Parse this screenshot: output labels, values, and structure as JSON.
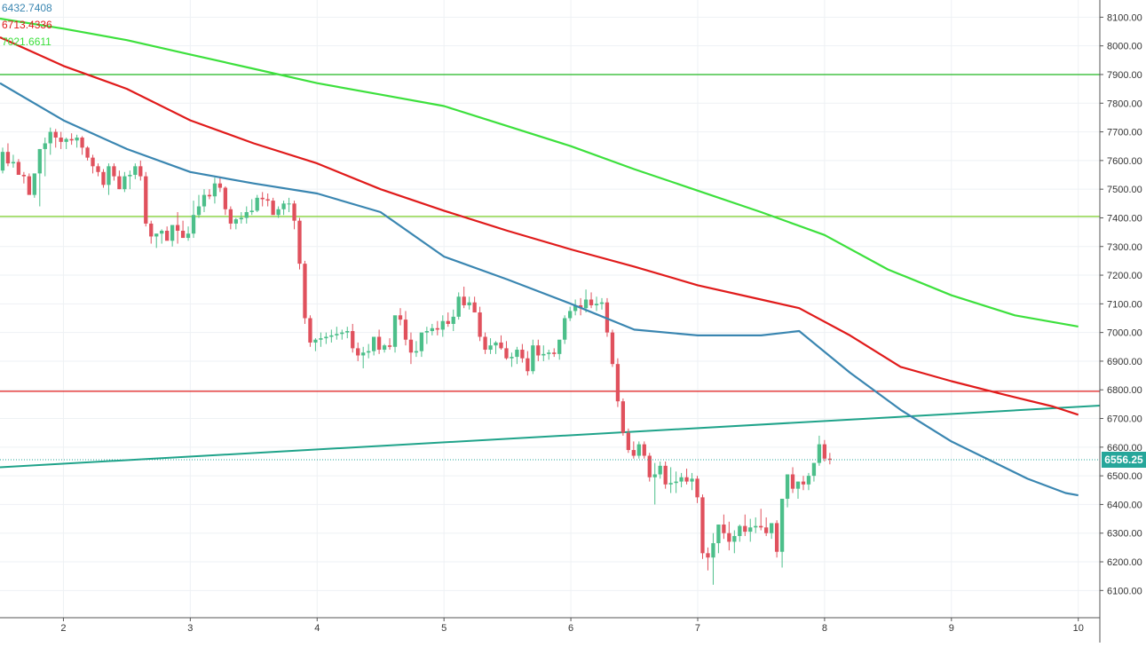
{
  "chart_data": {
    "type": "candlestick",
    "y_axis": {
      "ticks": [
        "8100.00",
        "8000.00",
        "7900.00",
        "7800.00",
        "7700.00",
        "7600.00",
        "7500.00",
        "7400.00",
        "7300.00",
        "7200.00",
        "7100.00",
        "7000.00",
        "6900.00",
        "6800.00",
        "6700.00",
        "6600.00",
        "6500.00",
        "6400.00",
        "6300.00",
        "6200.00",
        "6100.00"
      ],
      "range": [
        6005,
        8160
      ]
    },
    "x_axis": {
      "ticks": [
        "2",
        "3",
        "4",
        "5",
        "6",
        "7",
        "8",
        "9",
        "10"
      ],
      "range_days": [
        1.5,
        10.17
      ]
    },
    "legend_values": [
      {
        "text": "6432.7408",
        "color": "#3a86b1"
      },
      {
        "text": "6713.4336",
        "color": "#e01b1b"
      },
      {
        "text": "7021.6611",
        "color": "#3de03d"
      }
    ],
    "last_price": {
      "text": "6556.25",
      "value": 6556.25,
      "color": "#26a69a"
    },
    "colors": {
      "up": "#4cbf8a",
      "down": "#e0515d",
      "sma_fast": "#3a86b1",
      "sma_mid": "#e01b1b",
      "sma_slow": "#3de03d",
      "trendline": "#1fa38a",
      "grid": "#eef1f4"
    },
    "horizontal_levels": [
      {
        "value": 7900,
        "color": "#22b722"
      },
      {
        "value": 7405,
        "color": "#7ccf2a"
      },
      {
        "value": 6795,
        "color": "#e01b1b"
      }
    ],
    "trendline": {
      "points": [
        [
          1.5,
          6530
        ],
        [
          10.17,
          6745
        ]
      ]
    },
    "candles": {
      "start_day": 1.5,
      "step_days": 0.0418,
      "open": [
        7565,
        7630,
        7590,
        7595,
        7550,
        7545,
        7480,
        7555,
        7640,
        7660,
        7700,
        7680,
        7665,
        7675,
        7670,
        7680,
        7645,
        7610,
        7580,
        7560,
        7515,
        7580,
        7545,
        7500,
        7545,
        7550,
        7580,
        7545,
        7380,
        7335,
        7345,
        7355,
        7320,
        7375,
        7355,
        7330,
        7345,
        7410,
        7440,
        7480,
        7475,
        7520,
        7505,
        7430,
        7380,
        7395,
        7400,
        7420,
        7425,
        7470,
        7465,
        7460,
        7410,
        7430,
        7450,
        7450,
        7390,
        7240,
        7050,
        6965,
        6975,
        6980,
        6985,
        6990,
        6995,
        7000,
        7005,
        6945,
        6920,
        6930,
        6935,
        6985,
        6940,
        6955,
        6950,
        7060,
        7045,
        6975,
        6930,
        6935,
        7000,
        7005,
        7015,
        7010,
        7040,
        7030,
        7055,
        7125,
        7095,
        7105,
        7070,
        6985,
        6940,
        6955,
        6965,
        6945,
        6910,
        6915,
        6940,
        6910,
        6865,
        6955,
        6920,
        6925,
        6930,
        6925,
        6975,
        7050,
        7075,
        7095,
        7085,
        7115,
        7095,
        7100,
        7105,
        7000,
        6890,
        6760,
        6650,
        6590,
        6570,
        6610,
        6570,
        6495,
        6505,
        6535,
        6470,
        6475,
        6480,
        6495,
        6480,
        6490,
        6425,
        6230,
        6215,
        6265,
        6330,
        6300,
        6270,
        6290,
        6325,
        6305,
        6320,
        6325,
        6320,
        6300,
        6335,
        6235,
        6420,
        6505,
        6455,
        6480,
        6470,
        6500,
        6545,
        6610,
        6560
      ],
      "high": [
        7645,
        7660,
        7620,
        7605,
        7560,
        7555,
        7490,
        7640,
        7680,
        7715,
        7710,
        7700,
        7680,
        7695,
        7690,
        7685,
        7650,
        7620,
        7590,
        7570,
        7590,
        7590,
        7565,
        7560,
        7565,
        7590,
        7600,
        7560,
        7390,
        7345,
        7360,
        7370,
        7340,
        7420,
        7390,
        7370,
        7460,
        7480,
        7500,
        7500,
        7540,
        7540,
        7510,
        7440,
        7400,
        7420,
        7440,
        7465,
        7480,
        7490,
        7485,
        7470,
        7440,
        7460,
        7470,
        7460,
        7400,
        7250,
        7060,
        6980,
        7000,
        7000,
        7010,
        7020,
        7010,
        7020,
        7030,
        6965,
        6950,
        6960,
        6950,
        7010,
        6960,
        6980,
        6990,
        7085,
        7075,
        7000,
        6970,
        6950,
        7020,
        7030,
        7040,
        7060,
        7070,
        7080,
        7140,
        7160,
        7125,
        7125,
        7090,
        7000,
        6980,
        6970,
        6990,
        6970,
        6930,
        6950,
        6960,
        6935,
        6975,
        6975,
        6955,
        6940,
        6945,
        6940,
        7060,
        7090,
        7115,
        7120,
        7150,
        7140,
        7125,
        7120,
        7120,
        7010,
        6910,
        6770,
        6665,
        6620,
        6620,
        6620,
        6580,
        6545,
        6550,
        6550,
        6530,
        6515,
        6510,
        6525,
        6510,
        6500,
        6435,
        6250,
        6300,
        6330,
        6365,
        6340,
        6310,
        6330,
        6365,
        6350,
        6355,
        6385,
        6355,
        6330,
        6345,
        6400,
        6505,
        6530,
        6480,
        6500,
        6510,
        6545,
        6640,
        6625,
        6580
      ],
      "low": [
        7555,
        7580,
        7575,
        7555,
        7520,
        7530,
        7470,
        7440,
        7545,
        7620,
        7645,
        7640,
        7640,
        7655,
        7645,
        7620,
        7600,
        7555,
        7545,
        7505,
        7480,
        7530,
        7500,
        7490,
        7500,
        7535,
        7530,
        7370,
        7310,
        7295,
        7310,
        7330,
        7300,
        7310,
        7330,
        7320,
        7330,
        7400,
        7420,
        7465,
        7450,
        7490,
        7410,
        7360,
        7360,
        7380,
        7380,
        7410,
        7420,
        7440,
        7440,
        7420,
        7400,
        7410,
        7420,
        7360,
        7220,
        7030,
        6950,
        6935,
        6950,
        6960,
        6965,
        6975,
        6975,
        6980,
        6930,
        6900,
        6875,
        6910,
        6920,
        6925,
        6930,
        6940,
        6930,
        7025,
        6955,
        6890,
        6915,
        6915,
        6960,
        6990,
        6990,
        6985,
        7020,
        7005,
        7045,
        7085,
        7080,
        7070,
        6970,
        6925,
        6925,
        6925,
        6940,
        6905,
        6880,
        6890,
        6895,
        6850,
        6855,
        6900,
        6900,
        6905,
        6915,
        6905,
        6960,
        7040,
        7060,
        7060,
        7070,
        7085,
        7075,
        7080,
        6985,
        6880,
        6740,
        6640,
        6580,
        6560,
        6560,
        6560,
        6480,
        6400,
        6490,
        6455,
        6440,
        6440,
        6460,
        6470,
        6450,
        6405,
        6210,
        6170,
        6120,
        6230,
        6280,
        6240,
        6230,
        6270,
        6290,
        6270,
        6300,
        6310,
        6290,
        6280,
        6215,
        6180,
        6390,
        6440,
        6420,
        6450,
        6450,
        6480,
        6535,
        6550,
        6540
      ],
      "close": [
        7630,
        7590,
        7595,
        7550,
        7545,
        7480,
        7555,
        7640,
        7660,
        7700,
        7680,
        7665,
        7675,
        7670,
        7680,
        7645,
        7610,
        7580,
        7560,
        7515,
        7580,
        7545,
        7500,
        7545,
        7550,
        7580,
        7545,
        7380,
        7335,
        7345,
        7355,
        7320,
        7375,
        7355,
        7330,
        7345,
        7410,
        7440,
        7480,
        7475,
        7520,
        7505,
        7430,
        7380,
        7395,
        7400,
        7420,
        7425,
        7470,
        7465,
        7460,
        7410,
        7430,
        7450,
        7450,
        7390,
        7240,
        7050,
        6965,
        6975,
        6980,
        6985,
        6990,
        6995,
        7000,
        7005,
        6945,
        6920,
        6930,
        6935,
        6985,
        6940,
        6955,
        6950,
        7060,
        7045,
        6975,
        6930,
        6935,
        7000,
        7005,
        7015,
        7010,
        7040,
        7030,
        7055,
        7125,
        7095,
        7105,
        7070,
        6985,
        6940,
        6955,
        6965,
        6945,
        6910,
        6915,
        6940,
        6910,
        6865,
        6955,
        6920,
        6925,
        6930,
        6925,
        6975,
        7050,
        7075,
        7095,
        7085,
        7115,
        7095,
        7100,
        7105,
        7000,
        6890,
        6760,
        6650,
        6590,
        6570,
        6610,
        6570,
        6495,
        6505,
        6535,
        6470,
        6475,
        6480,
        6495,
        6480,
        6490,
        6425,
        6230,
        6215,
        6265,
        6330,
        6300,
        6270,
        6290,
        6325,
        6305,
        6320,
        6325,
        6320,
        6300,
        6335,
        6235,
        6420,
        6505,
        6455,
        6480,
        6470,
        6500,
        6545,
        6610,
        6560,
        6556
      ]
    },
    "sma_fast": {
      "x": [
        1.5,
        2.0,
        2.5,
        3.0,
        3.5,
        4.0,
        4.5,
        5.0,
        5.5,
        6.0,
        6.5,
        7.0,
        7.5,
        7.8,
        8.2,
        8.6,
        9.0,
        9.3,
        9.6,
        9.9,
        10.0
      ],
      "y": [
        7870,
        7740,
        7640,
        7560,
        7520,
        7485,
        7420,
        7265,
        7185,
        7100,
        7010,
        6990,
        6990,
        7005,
        6860,
        6730,
        6620,
        6555,
        6490,
        6440,
        6432
      ]
    },
    "sma_mid": {
      "x": [
        1.5,
        2.0,
        2.5,
        3.0,
        3.5,
        4.0,
        4.5,
        5.0,
        5.5,
        6.0,
        6.5,
        7.0,
        7.5,
        7.8,
        8.2,
        8.6,
        9.0,
        9.4,
        9.8,
        10.0
      ],
      "y": [
        8030,
        7930,
        7850,
        7740,
        7660,
        7590,
        7500,
        7425,
        7355,
        7290,
        7230,
        7165,
        7115,
        7085,
        6990,
        6880,
        6830,
        6785,
        6742,
        6713
      ]
    },
    "sma_slow": {
      "x": [
        1.5,
        2.0,
        2.5,
        3.0,
        3.5,
        4.0,
        4.5,
        5.0,
        5.5,
        6.0,
        6.5,
        7.0,
        7.5,
        8.0,
        8.5,
        9.0,
        9.5,
        10.0
      ],
      "y": [
        8095,
        8060,
        8020,
        7970,
        7920,
        7870,
        7830,
        7790,
        7720,
        7650,
        7570,
        7495,
        7420,
        7340,
        7220,
        7130,
        7060,
        7021
      ]
    }
  }
}
